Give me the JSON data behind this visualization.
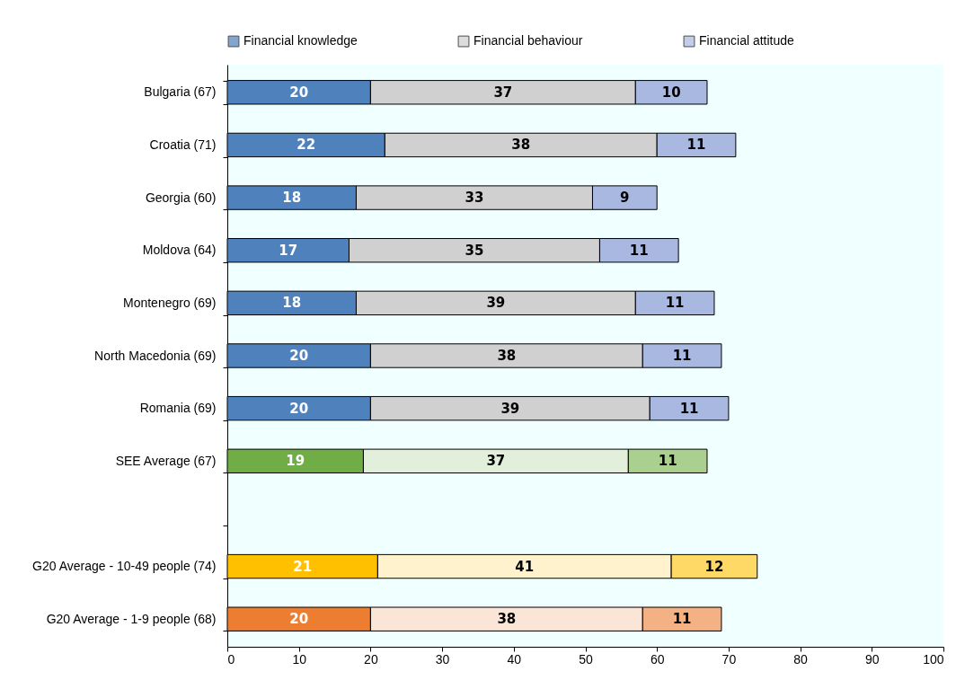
{
  "chart_data": {
    "type": "bar",
    "orientation": "horizontal",
    "stacked": true,
    "data_labels": true,
    "legend": "top",
    "grid": false,
    "categories": [
      "Bulgaria (67)",
      "Croatia (71)",
      "Georgia (60)",
      "Moldova (64)",
      "Montenegro (69)",
      "North Macedonia (69)",
      "Romania (69)",
      "SEE Average (67)",
      null,
      "G20 Average - 10-49 people (74)",
      "G20 Average - 1-9 people (68)"
    ],
    "xlim": [
      0,
      100
    ],
    "xticks": [
      0,
      10,
      20,
      30,
      40,
      50,
      60,
      70,
      80,
      90,
      100
    ],
    "series": [
      {
        "name": "Financial knowledge",
        "color": "#4f81bd",
        "values": [
          20,
          22,
          18,
          17,
          18,
          20,
          20,
          19,
          null,
          21,
          20
        ],
        "colors": [
          "#4f81bd",
          "#4f81bd",
          "#4f81bd",
          "#4f81bd",
          "#4f81bd",
          "#4f81bd",
          "#4f81bd",
          "#70ad47",
          null,
          "#ffc000",
          "#ed7d31"
        ]
      },
      {
        "name": "Financial behaviour",
        "color": "#d0d0d0",
        "values": [
          37,
          38,
          33,
          35,
          39,
          38,
          39,
          37,
          null,
          41,
          38
        ],
        "colors": [
          "#d0d0d0",
          "#d0d0d0",
          "#d0d0d0",
          "#d0d0d0",
          "#d0d0d0",
          "#d0d0d0",
          "#d0d0d0",
          "#e2efda",
          null,
          "#fff2cc",
          "#fbe5d6"
        ]
      },
      {
        "name": "Financial attitude",
        "color": "#a9b8e0",
        "values": [
          10,
          11,
          9,
          11,
          11,
          11,
          11,
          11,
          null,
          12,
          11
        ],
        "colors": [
          "#a9b8e0",
          "#a9b8e0",
          "#a9b8e0",
          "#a9b8e0",
          "#a9b8e0",
          "#a9b8e0",
          "#a9b8e0",
          "#a9d08e",
          null,
          "#ffd966",
          "#f4b183"
        ]
      }
    ]
  }
}
